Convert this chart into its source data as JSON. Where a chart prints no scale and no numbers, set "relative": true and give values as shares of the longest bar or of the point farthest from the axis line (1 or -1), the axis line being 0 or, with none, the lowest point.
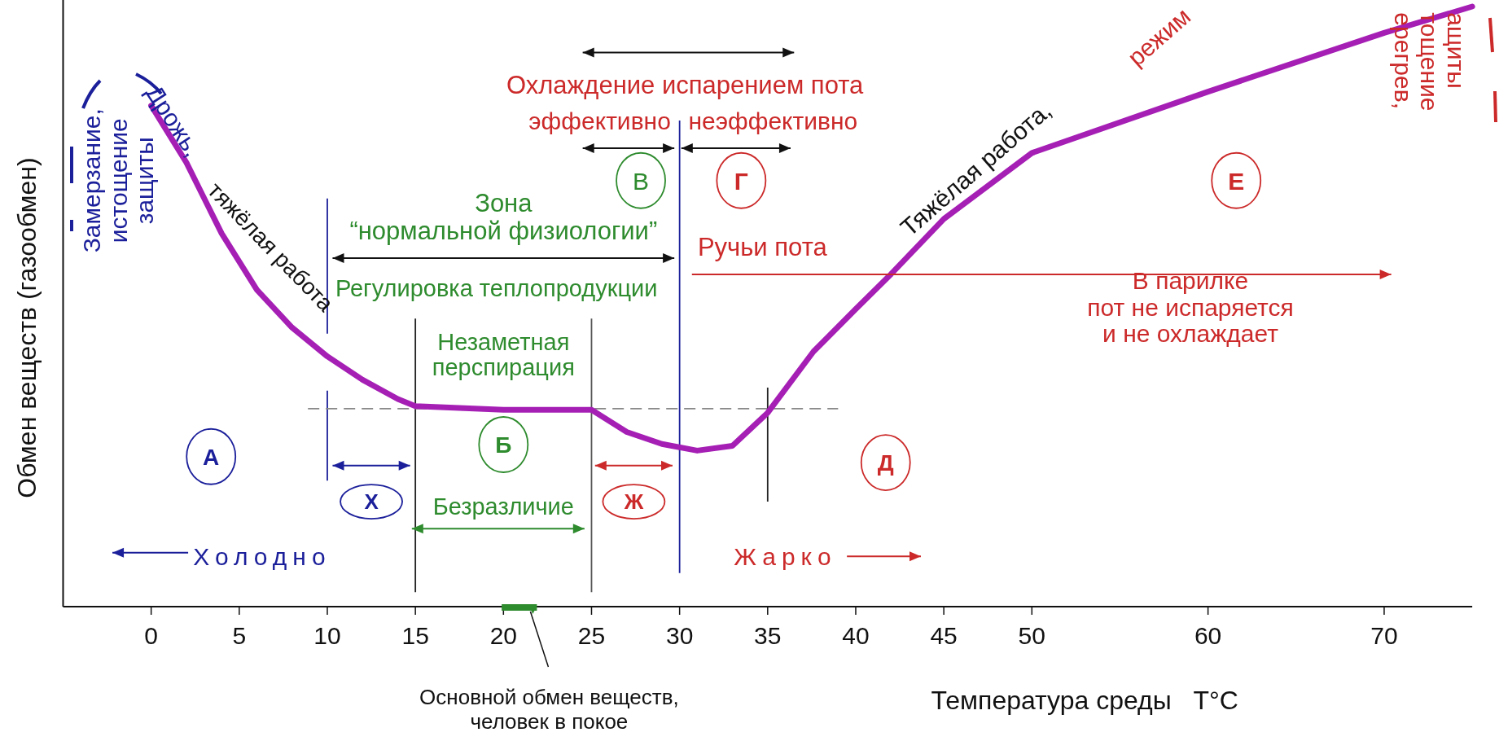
{
  "chart_data": {
    "type": "line",
    "relative": true,
    "xlabel": "Температура среды   T°C",
    "ylabel": "Обмен веществ (газообмен)",
    "x": [
      0,
      2,
      4,
      6,
      8,
      10,
      12,
      14,
      15,
      20,
      25,
      27,
      29,
      31,
      33,
      35,
      37.6,
      40,
      42,
      45,
      50,
      60,
      70,
      75
    ],
    "series": [
      {
        "color": "#a51fb5",
        "values": [
          0.835,
          0.74,
          0.622,
          0.528,
          0.465,
          0.417,
          0.378,
          0.346,
          0.334,
          0.328,
          0.328,
          0.291,
          0.271,
          0.26,
          0.268,
          0.323,
          0.425,
          0.496,
          0.554,
          0.646,
          0.756,
          0.858,
          0.956,
          1.0
        ]
      }
    ],
    "xlim": [
      -5,
      75
    ],
    "xticks": [
      0,
      5,
      10,
      15,
      20,
      25,
      30,
      35,
      40,
      45,
      50,
      60,
      70
    ],
    "ref_lines": [
      {
        "axis": "x",
        "value": 10,
        "color": "#1b1f9a"
      },
      {
        "axis": "x",
        "value": 15,
        "color": "#222222"
      },
      {
        "axis": "x",
        "value": 25,
        "color": "#555555"
      },
      {
        "axis": "x",
        "value": 30,
        "color": "#1b1f9a"
      },
      {
        "axis": "x",
        "value": 35,
        "color": "#222222"
      },
      {
        "axis": "y",
        "value": 0.33,
        "color": "#888888",
        "line_style": "dashed"
      }
    ],
    "annotations": [
      "Замерзание,\nистощение\nзащиты",
      "Дрожь,",
      "тяжёлая работа",
      "Зона\n“нормальной  физиологии”",
      "Регулировка теплопродукции",
      "В",
      "Г",
      "Охлаждение испарением пота",
      "эффективно",
      "неэффективно",
      "Ручьи пота",
      "В парилке\nпот не испаряется\nи не охлаждает",
      "Тяжёлая работа,",
      "режим",
      "ерегрев,\nтощение\nащиты",
      "Е",
      "Незаметная\nперспирация",
      "А",
      "Б",
      "Д",
      "Х",
      "Безразличие",
      "Ж",
      "Холодно",
      "Жарко",
      "Основной обмен веществ,\nчеловек в покое"
    ]
  }
}
